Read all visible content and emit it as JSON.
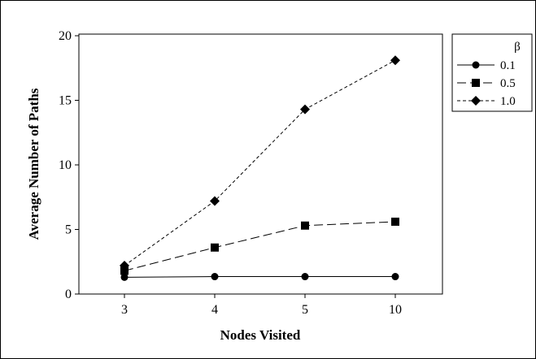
{
  "chart_data": {
    "type": "line",
    "categories": [
      "3",
      "4",
      "5",
      "10"
    ],
    "xlabel": "Nodes Visited",
    "ylabel": "Average Number of Paths",
    "ylim": [
      0,
      20
    ],
    "yticks": [
      0,
      5,
      10,
      15,
      20
    ],
    "grid": false,
    "legend": {
      "title": "β",
      "placement": "right"
    },
    "series": [
      {
        "name": "0.1",
        "values": [
          1.3,
          1.35,
          1.35,
          1.35
        ],
        "marker": "circle",
        "dash": "solid",
        "color": "#000000"
      },
      {
        "name": "0.5",
        "values": [
          1.8,
          3.6,
          5.3,
          5.6
        ],
        "marker": "square",
        "dash": "long-dash",
        "color": "#000000"
      },
      {
        "name": "1.0",
        "values": [
          2.2,
          7.2,
          14.3,
          18.1
        ],
        "marker": "diamond",
        "dash": "short-dash",
        "color": "#000000"
      }
    ]
  }
}
